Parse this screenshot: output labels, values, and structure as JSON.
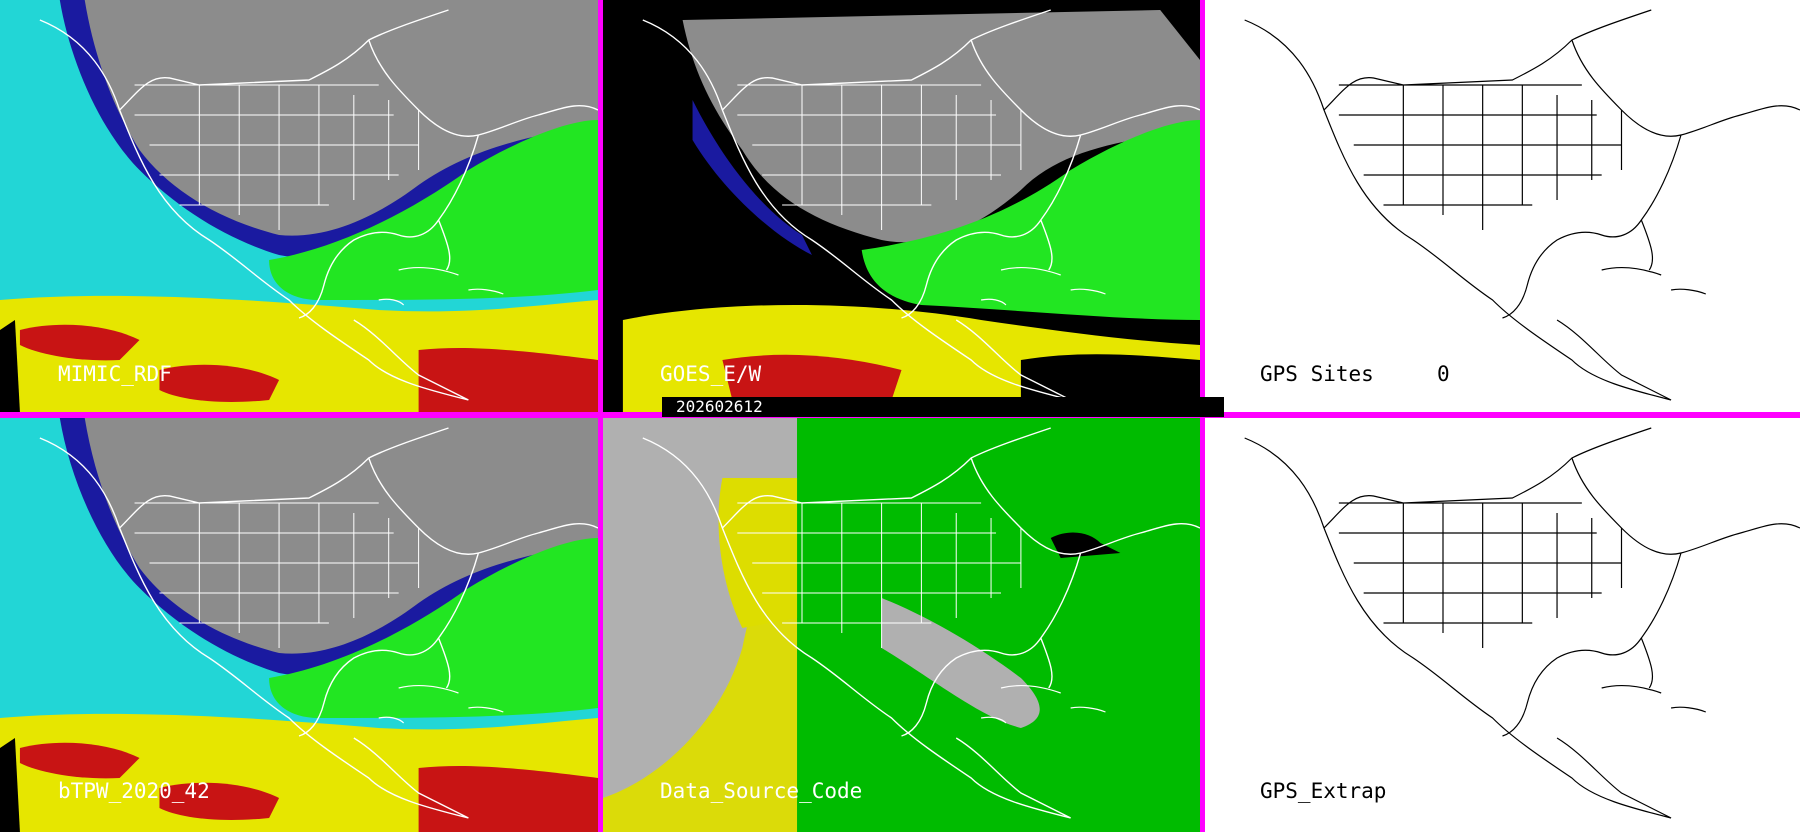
{
  "panels": [
    {
      "label": "MIMIC_RDF"
    },
    {
      "label": "GOES_E/W"
    },
    {
      "label": "GPS Sites     0"
    },
    {
      "label": "bTPW_2020_42"
    },
    {
      "label": "Data_Source_Code"
    },
    {
      "label": "GPS_Extrap"
    }
  ],
  "timestamp": "202602612",
  "colors": {
    "frame": "#ff00ff",
    "land_gray": "#8c8c8c",
    "ocean_cyan": "#22d6d6",
    "moist_green": "#22e622",
    "dry_blue": "#1a1aa0",
    "wet_yellow": "#e6e600",
    "very_wet_red": "#c81414",
    "source_gray": "#b0b0b0",
    "source_green": "#00bb00",
    "source_yellow": "#dddd00"
  }
}
